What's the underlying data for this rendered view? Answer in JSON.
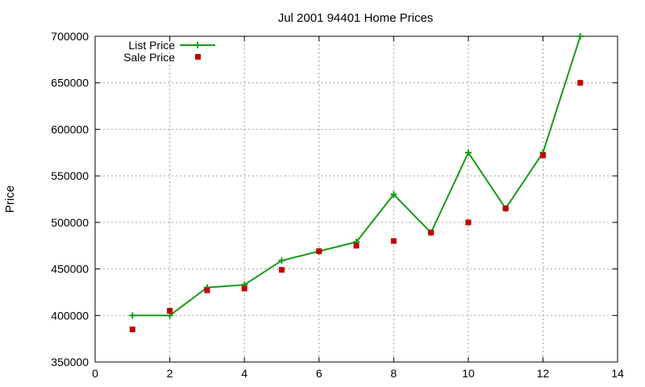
{
  "chart_data": {
    "type": "line",
    "title": "Jul 2001 94401 Home Prices",
    "xlabel": "",
    "ylabel": "Price",
    "xlim": [
      0,
      14
    ],
    "ylim": [
      350000,
      700000
    ],
    "x_ticks": [
      0,
      2,
      4,
      6,
      8,
      10,
      12,
      14
    ],
    "y_ticks": [
      350000,
      400000,
      450000,
      500000,
      550000,
      600000,
      650000,
      700000
    ],
    "grid": true,
    "legend_position": "top-left",
    "series": [
      {
        "name": "List Price",
        "style": "linespoints",
        "marker": "plus",
        "color": "#1a9a1a",
        "x": [
          1,
          2,
          3,
          4,
          5,
          6,
          7,
          8,
          9,
          10,
          11,
          12,
          13
        ],
        "y": [
          400000,
          400000,
          430000,
          433000,
          459000,
          469000,
          479000,
          530000,
          489000,
          575000,
          515000,
          575000,
          700000
        ]
      },
      {
        "name": "Sale Price",
        "style": "points",
        "marker": "square",
        "color": "#c00000",
        "x": [
          1,
          2,
          3,
          4,
          5,
          6,
          7,
          8,
          9,
          10,
          11,
          12,
          13
        ],
        "y": [
          385000,
          405000,
          427000,
          429000,
          449000,
          469000,
          475000,
          480000,
          489000,
          500000,
          515000,
          572000,
          650000
        ]
      }
    ]
  }
}
